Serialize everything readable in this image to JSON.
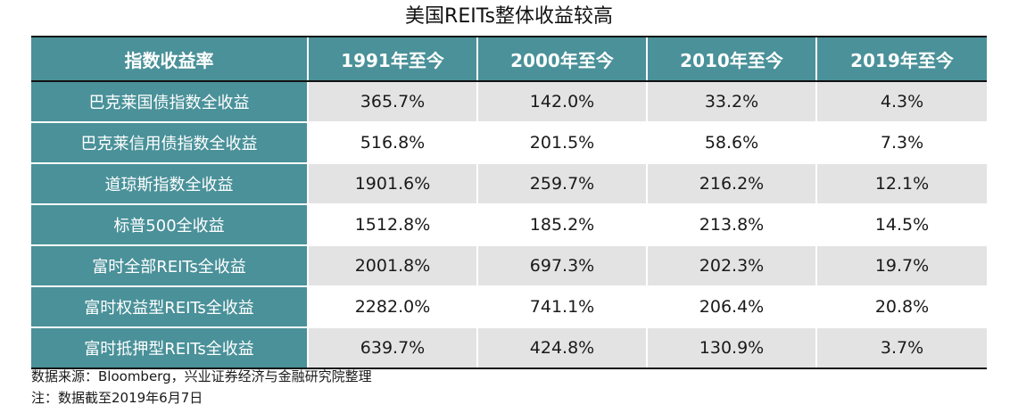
{
  "title": "美国REITs整体收益较高",
  "colors": {
    "header_bg": "#4a9199",
    "label_bg": "#4a9199",
    "shade_row": "#e3e3e3",
    "plain_row": "#ffffff",
    "rule": "#111111"
  },
  "chart_data": {
    "type": "table",
    "title": "美国REITs整体收益较高",
    "columns": [
      "指数收益率",
      "1991年至今",
      "2000年至今",
      "2010年至今",
      "2019年至今"
    ],
    "rows": [
      {
        "label": "巴克莱国债指数全收益",
        "values": [
          "365.7%",
          "142.0%",
          "33.2%",
          "4.3%"
        ]
      },
      {
        "label": "巴克莱信用债指数全收益",
        "values": [
          "516.8%",
          "201.5%",
          "58.6%",
          "7.3%"
        ]
      },
      {
        "label": "道琼斯指数全收益",
        "values": [
          "1901.6%",
          "259.7%",
          "216.2%",
          "12.1%"
        ]
      },
      {
        "label": "标普500全收益",
        "values": [
          "1512.8%",
          "185.2%",
          "213.8%",
          "14.5%"
        ]
      },
      {
        "label": "富时全部REITs全收益",
        "values": [
          "2001.8%",
          "697.3%",
          "202.3%",
          "19.7%"
        ]
      },
      {
        "label": "富时权益型REITs全收益",
        "values": [
          "2282.0%",
          "741.1%",
          "206.4%",
          "20.8%"
        ]
      },
      {
        "label": "富时抵押型REITs全收益",
        "values": [
          "639.7%",
          "424.8%",
          "130.9%",
          "3.7%"
        ]
      }
    ]
  },
  "footnotes": {
    "source": "数据来源：Bloomberg，兴业证券经济与金融研究院整理",
    "note": "注：数据截至2019年6月7日"
  }
}
